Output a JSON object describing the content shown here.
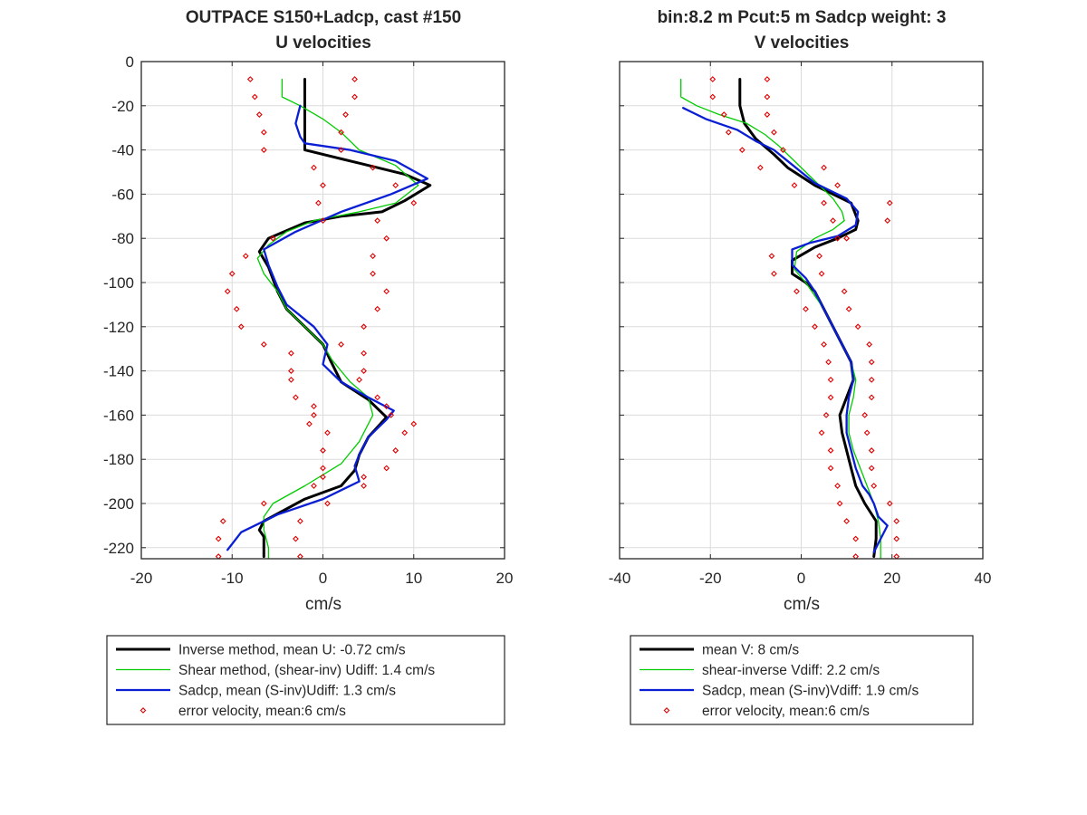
{
  "chart_data": [
    {
      "type": "line",
      "title": "OUTPACE S150+Ladcp, cast #150",
      "subtitle": "U velocities",
      "xlabel": "cm/s",
      "ylabel": "",
      "xlim": [
        -20,
        20
      ],
      "ylim": [
        -225,
        0
      ],
      "xticks": [
        -20,
        -10,
        0,
        10,
        20
      ],
      "xtick_labels": [
        "-20",
        "-10",
        "0",
        "10",
        "20"
      ],
      "yticks": [
        0,
        -20,
        -40,
        -60,
        -80,
        -100,
        -120,
        -140,
        -160,
        -180,
        -200,
        -220
      ],
      "ytick_labels": [
        "0",
        "-20",
        "-40",
        "-60",
        "-80",
        "-100",
        "-120",
        "-140",
        "-160",
        "-180",
        "-200",
        "-220"
      ],
      "grid": true,
      "legend_position": "below",
      "series": [
        {
          "name": "Inverse method, mean U:  -0.72 cm/s",
          "color": "#000000",
          "width": 3,
          "style": "line",
          "x": [
            -2,
            -2,
            -2,
            4,
            9,
            11.8,
            9,
            6.5,
            2,
            -2,
            -6,
            -7,
            -6,
            -5,
            -4,
            -2,
            0,
            0.8,
            2,
            5,
            7,
            5,
            4,
            3.5,
            2,
            -2,
            -6.5,
            -7,
            -6.5,
            -6.5,
            -6.5
          ],
          "y": [
            -8,
            -20,
            -40,
            -46,
            -51,
            -56,
            -63,
            -68,
            -70,
            -73,
            -80,
            -86,
            -93,
            -104,
            -112,
            -120,
            -128,
            -135,
            -145,
            -153,
            -161,
            -170,
            -178,
            -185,
            -192,
            -198,
            -208,
            -212,
            -215,
            -220,
            -224
          ]
        },
        {
          "name": "Shear method, (shear-inv)  Udiff:  1.4 cm/s",
          "color": "#00cc00",
          "width": 1.3,
          "style": "line",
          "x": [
            -4.5,
            -4.5,
            -2.5,
            0,
            2,
            4,
            8,
            10.5,
            8,
            4,
            -1,
            -4,
            -6,
            -7.2,
            -6.5,
            -5,
            -4,
            -2,
            0,
            1,
            3,
            5,
            5.5,
            4,
            2,
            -2,
            -5.5,
            -6.5,
            -6.5,
            -6,
            -6
          ],
          "y": [
            -8,
            -16,
            -20,
            -26,
            -32,
            -40,
            -47,
            -56,
            -64,
            -68,
            -72,
            -77,
            -83,
            -89,
            -96,
            -104,
            -112,
            -120,
            -128,
            -135,
            -145,
            -152,
            -160,
            -172,
            -182,
            -192,
            -200,
            -206,
            -212,
            -220,
            -225
          ]
        },
        {
          "name": "Sadcp, mean (S-inv)Udiff: 1.3 cm/s",
          "color": "#0a1ed4",
          "width": 2.3,
          "style": "line",
          "x": [
            -2.5,
            -3,
            -2.5,
            -2,
            3,
            8,
            11.5,
            7.5,
            2,
            -3,
            -6.5,
            -6,
            -5,
            -4,
            -1,
            0.5,
            0,
            2,
            5,
            7.8,
            7,
            5,
            4,
            3.5,
            4,
            0,
            -5,
            -9,
            -10.5
          ],
          "y": [
            -20,
            -28,
            -34,
            -37,
            -40,
            -45,
            -53,
            -60,
            -68,
            -77,
            -85,
            -92,
            -102,
            -110,
            -120,
            -128,
            -137,
            -145,
            -152,
            -158,
            -162,
            -170,
            -178,
            -183,
            -190,
            -198,
            -205,
            -213,
            -221
          ]
        },
        {
          "name": "error velocity, mean:6 cm/s",
          "color": "#e00000",
          "style": "markers",
          "x": [
            -8,
            3.5,
            -7.5,
            3.5,
            -7,
            2.5,
            -6.5,
            2,
            -6.5,
            2,
            -1,
            5.5,
            0,
            8,
            -0.5,
            10,
            0,
            6,
            -5.5,
            7,
            -8.5,
            5.5,
            -10,
            5.5,
            -10.5,
            7,
            -9.5,
            6,
            -9,
            4.5,
            -6.5,
            2,
            -3.5,
            4.5,
            -3.5,
            4.5,
            -3.5,
            4,
            -3,
            6,
            -1,
            7,
            -1,
            7.5,
            -1.5,
            10,
            0.5,
            9,
            0,
            8,
            0,
            7,
            0,
            4.5,
            -1,
            4.5,
            -6.5,
            0.5,
            -11,
            -2.5,
            -11.5,
            -3,
            -11.5,
            -2.5
          ],
          "y": [
            -8,
            -8,
            -16,
            -16,
            -24,
            -24,
            -32,
            -32,
            -40,
            -40,
            -48,
            -48,
            -56,
            -56,
            -64,
            -64,
            -72,
            -72,
            -80,
            -80,
            -88,
            -88,
            -96,
            -96,
            -104,
            -104,
            -112,
            -112,
            -120,
            -120,
            -128,
            -128,
            -132,
            -132,
            -140,
            -140,
            -144,
            -144,
            -152,
            -152,
            -156,
            -156,
            -160,
            -160,
            -164,
            -164,
            -168,
            -168,
            -176,
            -176,
            -184,
            -184,
            -188,
            -188,
            -192,
            -192,
            -200,
            -200,
            -208,
            -208,
            -216,
            -216,
            -224,
            -224
          ]
        }
      ]
    },
    {
      "type": "line",
      "title": "bin:8.2 m  Pcut:5 m  Sadcp weight: 3",
      "subtitle": "V velocities",
      "xlabel": "cm/s",
      "ylabel": "",
      "xlim": [
        -40,
        40
      ],
      "ylim": [
        -225,
        0
      ],
      "xticks": [
        -40,
        -20,
        0,
        20,
        40
      ],
      "xtick_labels": [
        "-40",
        "-20",
        "0",
        "20",
        "40"
      ],
      "yticks": [
        0,
        -20,
        -40,
        -60,
        -80,
        -100,
        -120,
        -140,
        -160,
        -180,
        -200,
        -220
      ],
      "grid": true,
      "legend_position": "below",
      "series": [
        {
          "name": "mean V:  8 cm/s",
          "color": "#000000",
          "width": 3,
          "style": "line",
          "x": [
            -13.5,
            -13.5,
            -12.5,
            -10,
            -6,
            -3,
            0,
            3,
            7,
            11,
            12.5,
            12,
            8,
            3,
            -2,
            -2,
            1,
            3,
            5,
            7,
            9,
            11,
            11.5,
            10,
            8.5,
            9,
            10,
            11,
            12,
            14,
            16.5,
            16.5,
            16
          ],
          "y": [
            -8,
            -20,
            -28,
            -35,
            -42,
            -48,
            -52,
            -56,
            -60,
            -64,
            -72,
            -76,
            -80,
            -84,
            -90,
            -96,
            -100,
            -104,
            -112,
            -120,
            -128,
            -136,
            -144,
            -152,
            -160,
            -168,
            -176,
            -184,
            -192,
            -200,
            -208,
            -216,
            -224
          ]
        },
        {
          "name": "shear-inverse Vdiff:  2.2 cm/s",
          "color": "#00cc00",
          "width": 1.3,
          "style": "line",
          "x": [
            -26.5,
            -26.5,
            -23,
            -18,
            -12,
            -8,
            -5,
            -2,
            1,
            4,
            7,
            9,
            9.5,
            7,
            3,
            -1,
            -1.5,
            1,
            3,
            5,
            7,
            9,
            11,
            12,
            11.5,
            10.5,
            10.5,
            11.5,
            13,
            14.5,
            16,
            17,
            17.5,
            17.5
          ],
          "y": [
            -8,
            -16,
            -20,
            -24,
            -28,
            -33,
            -38,
            -44,
            -50,
            -56,
            -62,
            -68,
            -72,
            -76,
            -80,
            -86,
            -94,
            -100,
            -106,
            -112,
            -120,
            -128,
            -136,
            -144,
            -152,
            -160,
            -168,
            -176,
            -184,
            -192,
            -200,
            -208,
            -216,
            -225
          ]
        },
        {
          "name": "Sadcp, mean (S-inv)Vdiff: 1.9 cm/s",
          "color": "#0a1ed4",
          "width": 2.3,
          "style": "line",
          "x": [
            -26,
            -21,
            -14,
            -10,
            -6,
            -3,
            0,
            3,
            7,
            10,
            12.5,
            12,
            8,
            2,
            -2,
            -2,
            1,
            3,
            5,
            7,
            9,
            11,
            11.5,
            10.5,
            10,
            10,
            11,
            12,
            13.5,
            15,
            16,
            17,
            19,
            17.5,
            16
          ],
          "y": [
            -21,
            -26,
            -31,
            -36,
            -40,
            -45,
            -50,
            -55,
            -59,
            -62,
            -68,
            -74,
            -79,
            -82,
            -85,
            -92,
            -98,
            -104,
            -112,
            -120,
            -128,
            -136,
            -144,
            -152,
            -160,
            -168,
            -176,
            -184,
            -192,
            -196,
            -200,
            -206,
            -210,
            -216,
            -222
          ]
        },
        {
          "name": "error velocity, mean:6 cm/s",
          "color": "#e00000",
          "style": "markers",
          "x": [
            -19.5,
            -7.5,
            -19.5,
            -7.5,
            -17,
            -7.5,
            -16,
            -6,
            -13,
            -4,
            -9,
            5,
            -1.5,
            8,
            5,
            19.5,
            7,
            19,
            8,
            10,
            -6.5,
            4,
            -6,
            4.5,
            -1,
            9.5,
            1,
            10.5,
            3,
            12.5,
            5,
            15,
            6,
            15.5,
            6.5,
            15.5,
            6.5,
            15.5,
            5.5,
            14,
            4.5,
            14.5,
            6.5,
            15.5,
            6.5,
            15.5,
            8,
            16,
            8.5,
            19.5,
            10,
            21,
            12,
            21,
            12,
            21
          ],
          "y": [
            -8,
            -8,
            -16,
            -16,
            -24,
            -24,
            -32,
            -32,
            -40,
            -40,
            -48,
            -48,
            -56,
            -56,
            -64,
            -64,
            -72,
            -72,
            -80,
            -80,
            -88,
            -88,
            -96,
            -96,
            -104,
            -104,
            -112,
            -112,
            -120,
            -120,
            -128,
            -128,
            -136,
            -136,
            -144,
            -144,
            -152,
            -152,
            -160,
            -160,
            -168,
            -168,
            -176,
            -176,
            -184,
            -184,
            -192,
            -192,
            -200,
            -200,
            -208,
            -208,
            -216,
            -216,
            -224,
            -224
          ]
        }
      ]
    }
  ]
}
